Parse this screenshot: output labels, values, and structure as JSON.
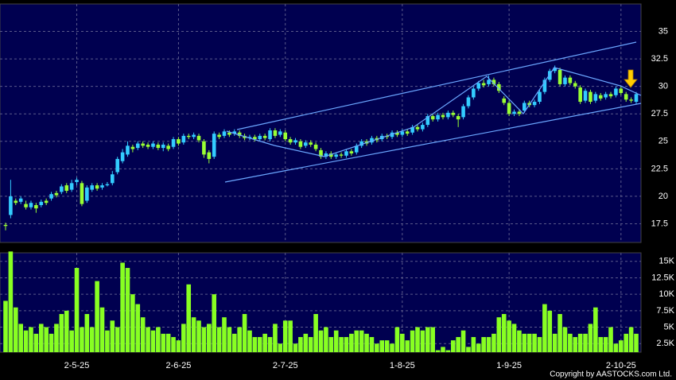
{
  "chart_data": {
    "type": "candlestick",
    "categories": [
      null,
      null,
      null,
      null,
      null,
      null,
      null,
      null,
      null,
      null,
      null,
      null,
      null,
      null,
      "2-5-25",
      null,
      null,
      null,
      null,
      null,
      null,
      null,
      null,
      null,
      null,
      null,
      null,
      null,
      null,
      null,
      null,
      null,
      null,
      null,
      "2-6-25",
      null,
      null,
      null,
      null,
      null,
      null,
      null,
      null,
      null,
      null,
      null,
      null,
      null,
      null,
      null,
      null,
      null,
      null,
      null,
      null,
      "2-7-25",
      null,
      null,
      null,
      null,
      null,
      null,
      null,
      null,
      null,
      null,
      null,
      null,
      null,
      null,
      null,
      null,
      null,
      null,
      null,
      null,
      null,
      null,
      "1-8-25",
      null,
      null,
      null,
      null,
      null,
      null,
      null,
      null,
      null,
      null,
      null,
      null,
      null,
      null,
      null,
      null,
      null,
      null,
      null,
      null,
      "1-9-25",
      null,
      null,
      null,
      null,
      null,
      null,
      null,
      null,
      null,
      null,
      null,
      null,
      null,
      null,
      null,
      null,
      null,
      null,
      null,
      null,
      null,
      "2-10-25",
      null,
      null,
      null
    ],
    "open": [
      17.4,
      18.3,
      19.6,
      19.5,
      19.3,
      19.0,
      19.2,
      19.2,
      19.6,
      19.8,
      20.3,
      20.4,
      21.0,
      20.6,
      21.3,
      21.2,
      19.6,
      20.6,
      21.0,
      20.8,
      21.0,
      21.2,
      22.2,
      23.2,
      23.8,
      24.5,
      24.4,
      24.8,
      24.7,
      24.5,
      24.7,
      24.4,
      24.6,
      24.5,
      25.2,
      24.9,
      25.5,
      25.4,
      25.5,
      25.0,
      24.0,
      23.6,
      25.6,
      25.5,
      25.8,
      25.7,
      25.8,
      25.5,
      25.3,
      25.4,
      25.2,
      25.5,
      25.2,
      26.0,
      25.6,
      25.8,
      25.2,
      24.9,
      25.0,
      24.6,
      24.9,
      24.7,
      24.2,
      23.6,
      23.9,
      23.6,
      23.8,
      23.7,
      24.1,
      24.0,
      24.6,
      25.0,
      24.9,
      25.3,
      25.2,
      25.5,
      25.4,
      25.8,
      25.6,
      25.9,
      25.8,
      26.3,
      26.1,
      26.5,
      27.3,
      27.0,
      27.4,
      27.2,
      27.6,
      27.3,
      27.2,
      28.2,
      29.0,
      29.8,
      30.3,
      30.2,
      30.6,
      30.2,
      28.9,
      28.5,
      27.5,
      27.7,
      27.8,
      28.5,
      28.3,
      28.6,
      29.5,
      30.6,
      31.4,
      31.5,
      30.2,
      30.8,
      30.3,
      29.9,
      28.7,
      29.5,
      28.7,
      29.2,
      29.0,
      29.3,
      29.2,
      29.8,
      29.3,
      28.8,
      28.6
    ],
    "high": [
      17.6,
      21.5,
      19.8,
      20.0,
      19.6,
      19.6,
      19.4,
      19.7,
      19.8,
      20.4,
      20.5,
      21.1,
      21.2,
      21.5,
      21.7,
      21.4,
      21.0,
      21.2,
      21.2,
      21.2,
      21.3,
      22.3,
      23.6,
      24.3,
      25.0,
      24.7,
      25.0,
      25.0,
      24.9,
      25.0,
      24.9,
      24.9,
      24.8,
      25.4,
      25.4,
      25.7,
      25.7,
      25.8,
      25.7,
      25.2,
      24.2,
      25.9,
      25.8,
      26.1,
      26.0,
      26.1,
      26.0,
      25.7,
      25.6,
      25.6,
      25.7,
      25.7,
      26.2,
      26.2,
      26.1,
      26.0,
      25.4,
      25.3,
      25.2,
      25.1,
      25.1,
      24.9,
      24.4,
      24.1,
      24.1,
      24.0,
      24.0,
      24.3,
      24.3,
      24.8,
      25.2,
      25.2,
      25.5,
      25.5,
      25.7,
      25.7,
      26.0,
      26.0,
      26.1,
      26.1,
      26.5,
      26.5,
      26.7,
      27.5,
      27.5,
      27.6,
      27.6,
      27.8,
      27.8,
      27.5,
      28.4,
      29.2,
      30.0,
      30.5,
      30.6,
      31.0,
      30.8,
      30.4,
      29.1,
      28.7,
      27.9,
      27.9,
      28.7,
      28.7,
      28.8,
      29.7,
      30.8,
      31.6,
      31.9,
      31.7,
      31.0,
      31.0,
      30.5,
      30.1,
      29.8,
      29.7,
      29.5,
      29.4,
      29.5,
      29.5,
      30.0,
      30.0,
      29.5,
      29.0,
      29.5
    ],
    "low": [
      16.9,
      18.0,
      19.2,
      19.3,
      18.8,
      18.8,
      18.5,
      19.0,
      19.2,
      19.6,
      19.9,
      20.2,
      20.3,
      20.4,
      21.0,
      19.1,
      19.4,
      20.4,
      20.5,
      20.6,
      20.9,
      21.0,
      22.0,
      23.0,
      23.6,
      24.0,
      24.2,
      24.4,
      24.3,
      24.3,
      24.2,
      24.1,
      24.1,
      24.3,
      24.6,
      24.7,
      25.2,
      25.2,
      24.9,
      23.5,
      23.0,
      23.4,
      25.2,
      25.3,
      25.4,
      25.5,
      25.3,
      25.1,
      25.1,
      25.0,
      25.0,
      25.1,
      25.0,
      25.3,
      25.4,
      25.0,
      24.7,
      24.7,
      24.3,
      24.4,
      24.5,
      24.1,
      23.4,
      23.4,
      23.4,
      23.4,
      23.5,
      23.5,
      23.7,
      23.8,
      24.4,
      24.6,
      24.7,
      24.9,
      25.0,
      25.2,
      25.2,
      25.4,
      25.4,
      25.5,
      25.6,
      25.9,
      25.9,
      26.3,
      26.8,
      26.8,
      27.0,
      27.0,
      27.2,
      26.3,
      27.0,
      28.0,
      28.8,
      29.6,
      29.9,
      30.0,
      30.0,
      29.4,
      28.3,
      27.3,
      27.3,
      27.3,
      27.6,
      28.1,
      28.1,
      28.4,
      29.3,
      30.4,
      31.2,
      30.0,
      30.0,
      30.1,
      29.8,
      28.4,
      28.5,
      28.4,
      28.5,
      28.7,
      28.8,
      28.9,
      29.0,
      29.2,
      28.6,
      28.5,
      28.4
    ],
    "close": [
      17.3,
      20.0,
      19.4,
      19.8,
      19.0,
      19.4,
      18.9,
      19.5,
      19.4,
      20.2,
      20.1,
      20.9,
      20.5,
      21.2,
      21.5,
      19.3,
      20.8,
      21.0,
      20.7,
      21.0,
      21.1,
      22.0,
      23.4,
      24.0,
      24.6,
      24.3,
      24.8,
      24.6,
      24.5,
      24.8,
      24.4,
      24.7,
      24.3,
      25.2,
      24.8,
      25.5,
      25.4,
      25.6,
      25.1,
      23.8,
      23.4,
      25.7,
      25.4,
      25.9,
      25.6,
      25.9,
      25.5,
      25.3,
      25.4,
      25.2,
      25.5,
      25.3,
      26.0,
      25.5,
      25.9,
      25.2,
      24.9,
      25.1,
      24.5,
      24.9,
      24.7,
      24.3,
      23.6,
      23.9,
      23.6,
      23.8,
      23.7,
      24.1,
      23.9,
      24.6,
      25.0,
      24.8,
      25.3,
      25.1,
      25.5,
      25.4,
      25.8,
      25.6,
      25.9,
      25.7,
      26.3,
      26.1,
      26.5,
      27.3,
      27.0,
      27.4,
      27.2,
      27.6,
      27.4,
      27.0,
      28.2,
      29.0,
      29.8,
      30.3,
      30.1,
      30.6,
      30.2,
      29.6,
      28.5,
      27.5,
      27.7,
      27.5,
      28.5,
      28.3,
      28.6,
      29.5,
      30.6,
      31.4,
      31.7,
      30.2,
      30.8,
      30.3,
      30.0,
      28.6,
      29.6,
      28.6,
      29.3,
      28.9,
      29.3,
      29.1,
      29.8,
      29.4,
      28.8,
      28.7,
      29.3
    ],
    "up_color": "#33ccff",
    "down_color": "#99ff33",
    "ylim": [
      15.8,
      37.5
    ],
    "yticks": [
      17.5,
      20,
      22.5,
      25,
      27.5,
      30,
      32.5,
      35
    ],
    "grid": true,
    "volume": {
      "color": "#88ff22",
      "values": [
        9,
        16.5,
        8,
        5.5,
        4.5,
        5,
        4,
        5.5,
        5,
        4,
        5.5,
        7,
        7.5,
        4.5,
        14,
        5,
        7,
        5,
        12,
        8,
        4.5,
        6,
        5,
        14.8,
        14,
        10,
        8.5,
        6.5,
        5,
        4.5,
        5,
        4,
        4,
        3.5,
        3,
        5.5,
        11.5,
        6.5,
        6,
        5,
        5.5,
        10,
        5,
        6.5,
        5,
        4,
        5,
        7,
        4.5,
        3.5,
        3.5,
        4,
        3.5,
        5.5,
        2.5,
        6,
        6,
        2.5,
        3.5,
        4,
        3.5,
        7,
        4.5,
        5,
        3.5,
        4.5,
        3.5,
        3.5,
        4,
        4.5,
        4.5,
        4,
        3.5,
        2.5,
        3,
        3,
        2.5,
        5,
        4,
        3,
        4.5,
        5,
        4.5,
        5,
        5,
        1.5,
        2,
        1.5,
        3,
        3.5,
        4.5,
        2,
        3.5,
        2.5,
        3.5,
        3.5,
        4,
        6.5,
        7,
        6,
        5.5,
        4.5,
        4,
        4,
        4,
        3.5,
        8.5,
        7.5,
        4,
        7,
        5,
        4,
        3.5,
        4,
        4,
        5.5,
        8,
        3.5,
        3.5,
        5,
        2.5,
        3,
        4,
        5,
        4
      ],
      "ylim": [
        1.2,
        16.3
      ],
      "yticks": [
        {
          "value": 2.5,
          "label": "2.5K"
        },
        {
          "value": 5,
          "label": "5K"
        },
        {
          "value": 7.5,
          "label": "7.5K"
        },
        {
          "value": 10,
          "label": "10K"
        },
        {
          "value": 12.5,
          "label": "12.5K"
        },
        {
          "value": 15,
          "label": "15K"
        }
      ]
    }
  },
  "copyright": "Copyright by AASTOCKS.com Ltd."
}
